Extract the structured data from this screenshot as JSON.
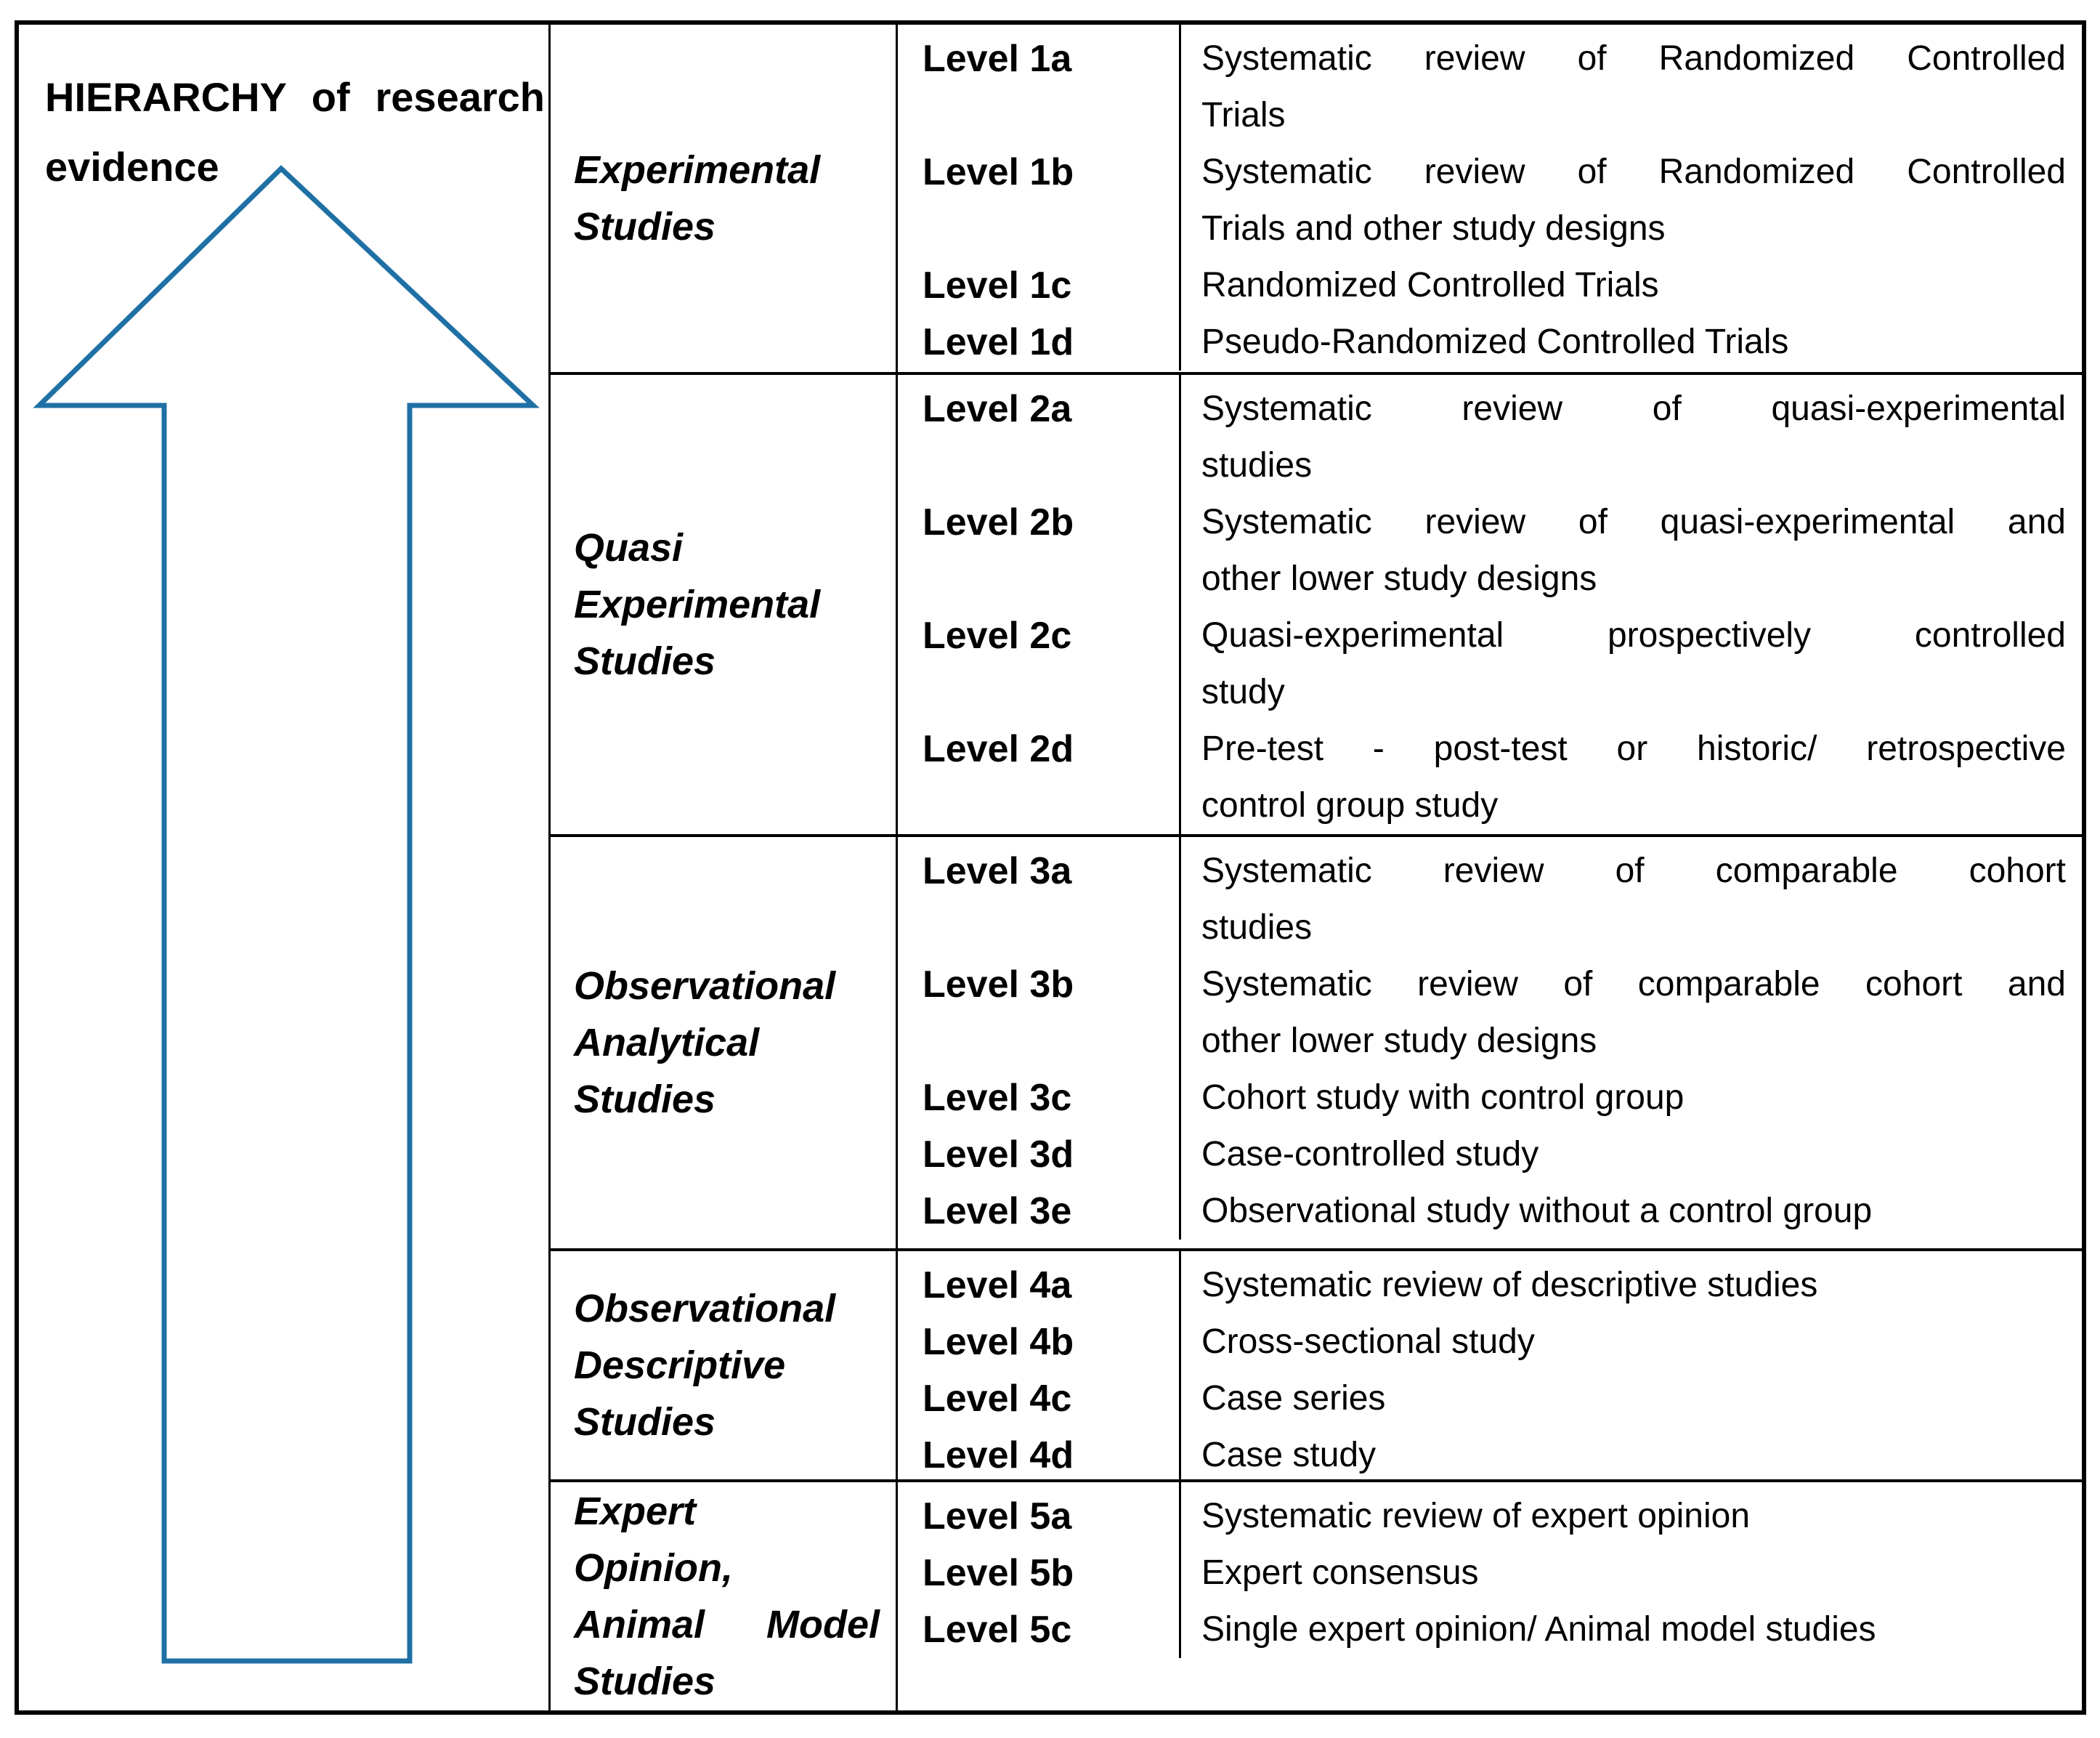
{
  "figure": {
    "title": "HIERARCHY of research evidence",
    "title_lines": [
      "HIERARCHY of research",
      "evidence"
    ],
    "arrow": {
      "shape": "upward-arrow-outline",
      "color": "#1f70a4"
    },
    "colors": {
      "background": "#ffffff",
      "border": "#000000",
      "text": "#000000",
      "arrow_outline": "#1f70a4"
    },
    "table": {
      "sections": [
        {
          "category": "Experimental Studies",
          "category_lines": [
            "Experimental",
            "Studies"
          ],
          "rows": [
            {
              "level": "Level 1a",
              "desc": "Systematic review of Randomized Controlled Trials",
              "desc_lines": [
                "Systematic review of Randomized Controlled",
                "Trials"
              ]
            },
            {
              "level": "Level 1b",
              "desc": "Systematic review of Randomized Controlled Trials and other study designs",
              "desc_lines": [
                "Systematic review of Randomized Controlled",
                "Trials and other study designs"
              ]
            },
            {
              "level": "Level 1c",
              "desc": "Randomized Controlled Trials",
              "desc_lines": [
                "Randomized Controlled Trials"
              ]
            },
            {
              "level": "Level 1d",
              "desc": "Pseudo-Randomized Controlled Trials",
              "desc_lines": [
                "Pseudo-Randomized Controlled Trials"
              ]
            }
          ]
        },
        {
          "category": "Quasi Experimental Studies",
          "category_lines": [
            "Quasi",
            "Experimental",
            "Studies"
          ],
          "rows": [
            {
              "level": "Level 2a",
              "desc": "Systematic review of quasi-experimental studies",
              "desc_lines": [
                "Systematic review of quasi-experimental",
                "studies"
              ]
            },
            {
              "level": "Level 2b",
              "desc": "Systematic review of quasi-experimental and other lower study designs",
              "desc_lines": [
                "Systematic review of quasi-experimental and",
                "other lower study designs"
              ]
            },
            {
              "level": "Level 2c",
              "desc": "Quasi-experimental prospectively controlled study",
              "desc_lines": [
                "Quasi-experimental prospectively controlled",
                "study"
              ]
            },
            {
              "level": "Level 2d",
              "desc": "Pre-test - post-test or historic/ retrospective control group study",
              "desc_lines": [
                "Pre-test - post-test or historic/ retrospective",
                "control group study"
              ]
            }
          ]
        },
        {
          "category": "Observational Analytical Studies",
          "category_lines": [
            "Observational",
            "Analytical",
            "Studies"
          ],
          "rows": [
            {
              "level": "Level 3a",
              "desc": "Systematic review of comparable cohort studies",
              "desc_lines": [
                "Systematic review of comparable cohort",
                "studies"
              ]
            },
            {
              "level": "Level 3b",
              "desc": "Systematic review of comparable cohort and other lower study designs",
              "desc_lines": [
                "Systematic review of comparable cohort and",
                "other lower study designs"
              ]
            },
            {
              "level": "Level 3c",
              "desc": "Cohort study with control group",
              "desc_lines": [
                "Cohort study with control group"
              ]
            },
            {
              "level": "Level 3d",
              "desc": "Case-controlled study",
              "desc_lines": [
                "Case-controlled study"
              ]
            },
            {
              "level": "Level 3e",
              "desc": "Observational study without a control group",
              "desc_lines": [
                "Observational study without a control group"
              ]
            }
          ]
        },
        {
          "category": "Observational Descriptive Studies",
          "category_lines": [
            "Observational",
            "Descriptive",
            "Studies"
          ],
          "rows": [
            {
              "level": "Level 4a",
              "desc": "Systematic review of descriptive studies",
              "desc_lines": [
                "Systematic review of descriptive studies"
              ]
            },
            {
              "level": "Level 4b",
              "desc": "Cross-sectional study",
              "desc_lines": [
                "Cross-sectional study"
              ]
            },
            {
              "level": "Level 4c",
              "desc": "Case series",
              "desc_lines": [
                "Case series"
              ]
            },
            {
              "level": "Level 4d",
              "desc": "Case study",
              "desc_lines": [
                "Case study"
              ]
            }
          ]
        },
        {
          "category": "Expert Opinion, Animal Model Studies",
          "category_lines": [
            "Expert",
            "Opinion,",
            "Animal Model",
            "Studies"
          ],
          "rows": [
            {
              "level": "Level 5a",
              "desc": "Systematic review of expert opinion",
              "desc_lines": [
                "Systematic review of expert opinion"
              ]
            },
            {
              "level": "Level 5b",
              "desc": "Expert consensus",
              "desc_lines": [
                "Expert consensus"
              ]
            },
            {
              "level": "Level 5c",
              "desc": "Single expert opinion/ Animal model studies",
              "desc_lines": [
                "Single expert opinion/ Animal model studies"
              ]
            }
          ]
        }
      ]
    }
  }
}
